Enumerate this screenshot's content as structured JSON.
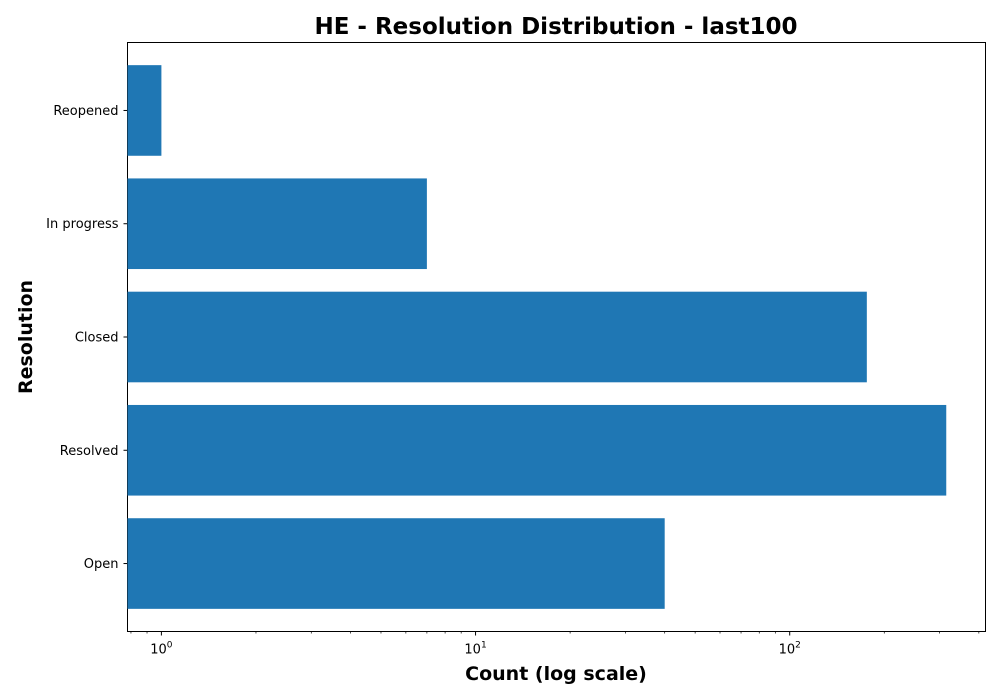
{
  "chart_data": {
    "type": "bar",
    "orientation": "horizontal",
    "title": "HE - Resolution Distribution - last100",
    "xlabel": "Count (log scale)",
    "ylabel": "Resolution",
    "xscale": "log",
    "xlim": [
      0.78,
      420
    ],
    "categories": [
      "Open",
      "Resolved",
      "Closed",
      "In progress",
      "Reopened"
    ],
    "values": [
      40,
      315,
      176,
      7,
      1
    ],
    "bar_color": "#1f77b4",
    "grid": false,
    "legend": "none",
    "x_ticks": [
      {
        "base": "10",
        "exp": "0"
      },
      {
        "base": "10",
        "exp": "1"
      },
      {
        "base": "10",
        "exp": "2"
      }
    ]
  }
}
